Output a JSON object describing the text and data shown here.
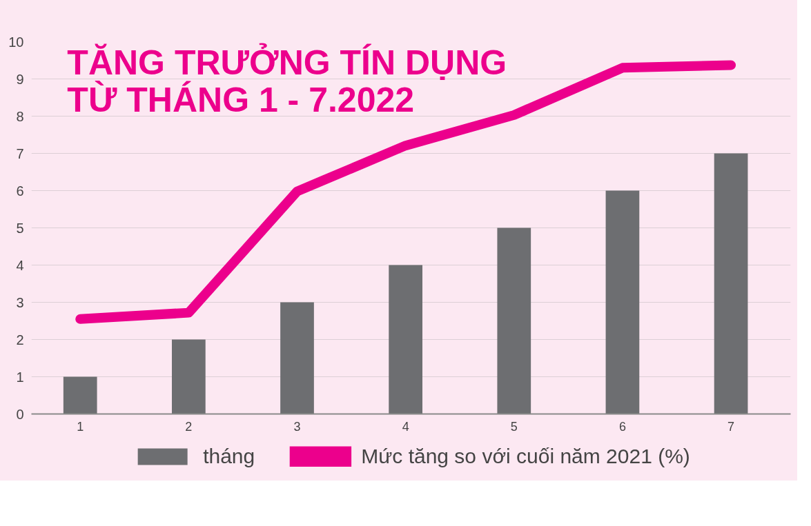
{
  "chart_data": {
    "type": "bar",
    "title": "TĂNG TRƯỞNG TÍN DỤNG\nTỪ THÁNG 1 - 7.2022",
    "categories": [
      "1",
      "2",
      "3",
      "4",
      "5",
      "6",
      "7"
    ],
    "series": [
      {
        "name": "tháng",
        "color": "#6d6e71",
        "values": [
          1,
          2,
          3,
          4,
          5,
          6,
          7
        ]
      },
      {
        "name": "Mức tăng so với cuối năm 2021 (%)",
        "type": "line",
        "color": "#ec008c",
        "values": [
          2.55,
          2.72,
          5.98,
          7.21,
          8.03,
          9.3,
          9.37
        ]
      }
    ],
    "ylim": [
      0,
      10
    ],
    "yticks": [
      0,
      1,
      2,
      3,
      4,
      5,
      6,
      7,
      8,
      9,
      10
    ],
    "grid": "y",
    "legend": "bottom"
  }
}
